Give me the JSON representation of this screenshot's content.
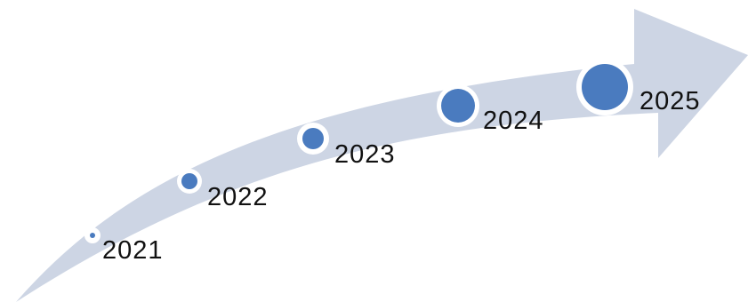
{
  "timeline": {
    "colors": {
      "arrow_fill": "#cdd5e4",
      "dot_fill": "#4a7bbf",
      "dot_ring": "#ffffff",
      "text": "#111111"
    },
    "milestones": [
      {
        "year": "2021",
        "size": 1
      },
      {
        "year": "2022",
        "size": 2
      },
      {
        "year": "2023",
        "size": 3
      },
      {
        "year": "2024",
        "size": 4
      },
      {
        "year": "2025",
        "size": 5
      }
    ]
  }
}
